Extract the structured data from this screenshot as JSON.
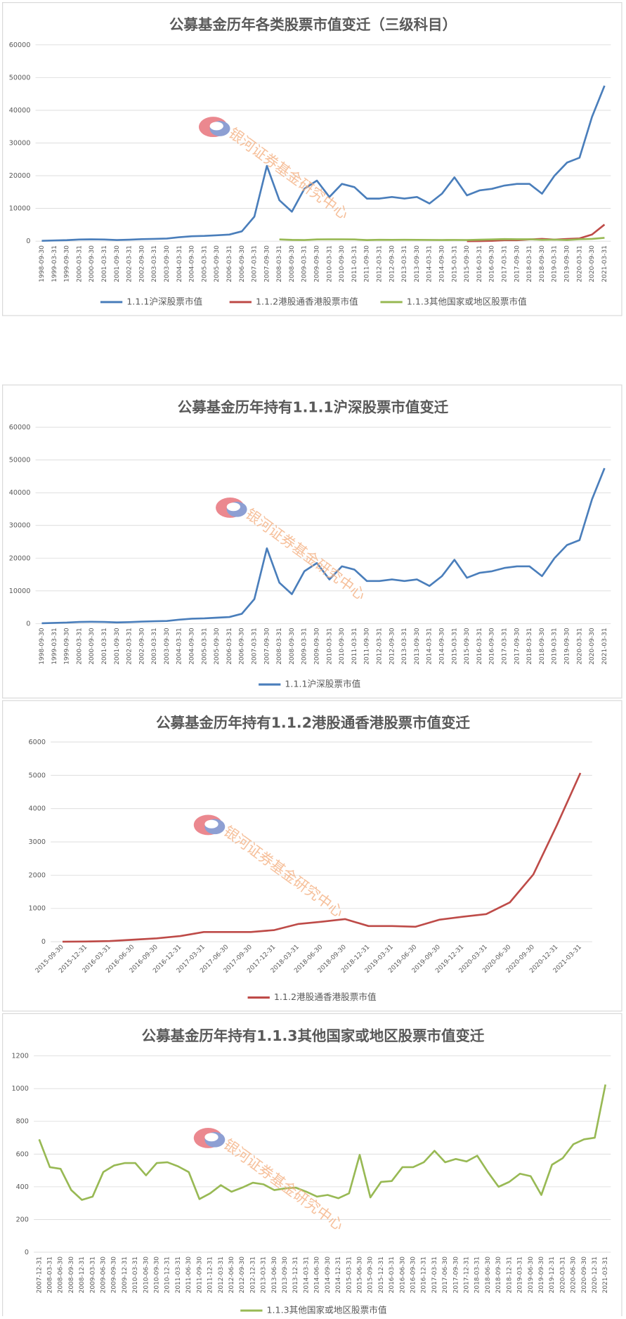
{
  "chart_data": [
    {
      "type": "line",
      "title": "公募基金历年各类股票市值变迁（三级科目）",
      "watermark": "银河证券基金研究中心",
      "categories": [
        "1998-09-30",
        "1999-03-31",
        "1999-09-30",
        "2000-03-31",
        "2000-09-30",
        "2001-03-31",
        "2001-09-30",
        "2002-03-31",
        "2002-09-30",
        "2003-03-31",
        "2003-09-30",
        "2004-03-31",
        "2004-09-30",
        "2005-03-31",
        "2005-09-30",
        "2006-03-31",
        "2006-09-30",
        "2007-03-31",
        "2007-09-30",
        "2008-03-31",
        "2008-09-30",
        "2009-03-31",
        "2009-09-30",
        "2010-03-31",
        "2010-09-30",
        "2011-03-31",
        "2011-09-30",
        "2012-03-31",
        "2012-09-30",
        "2013-03-31",
        "2013-09-30",
        "2014-03-31",
        "2014-09-30",
        "2015-03-31",
        "2015-09-30",
        "2016-03-31",
        "2016-09-30",
        "2017-03-31",
        "2017-09-30",
        "2018-03-31",
        "2018-09-30",
        "2019-03-31",
        "2019-09-30",
        "2020-03-31",
        "2020-09-30",
        "2021-03-31"
      ],
      "series": [
        {
          "name": "1.1.1沪深股票市值",
          "color": "#4a7ebb",
          "values": [
            100,
            200,
            300,
            500,
            550,
            500,
            350,
            450,
            600,
            700,
            800,
            1200,
            1500,
            1600,
            1800,
            2000,
            3000,
            7500,
            23000,
            12500,
            9000,
            16000,
            18500,
            13500,
            17500,
            16500,
            13000,
            13000,
            13500,
            13000,
            13500,
            11500,
            14500,
            19500,
            14000,
            15500,
            16000,
            17000,
            17500,
            17500,
            14500,
            20000,
            24000,
            25500,
            38000,
            47500
          ]
        },
        {
          "name": "1.1.2港股通香港股票市值",
          "color": "#be4b48",
          "values": [
            null,
            null,
            null,
            null,
            null,
            null,
            null,
            null,
            null,
            null,
            null,
            null,
            null,
            null,
            null,
            null,
            null,
            null,
            null,
            null,
            null,
            null,
            null,
            null,
            null,
            null,
            null,
            null,
            null,
            null,
            null,
            null,
            null,
            null,
            0,
            20,
            100,
            290,
            290,
            530,
            680,
            470,
            660,
            830,
            2020,
            5070
          ]
        },
        {
          "name": "1.1.3其他国家或地区股票市值",
          "color": "#98b954",
          "values": [
            null,
            null,
            null,
            null,
            null,
            null,
            null,
            null,
            null,
            null,
            null,
            null,
            null,
            null,
            null,
            null,
            null,
            null,
            null,
            520,
            380,
            340,
            530,
            545,
            545,
            525,
            325,
            410,
            395,
            415,
            390,
            370,
            350,
            360,
            335,
            435,
            520,
            620,
            570,
            590,
            400,
            480,
            350,
            575,
            690,
            1025
          ]
        }
      ],
      "ylim": [
        0,
        60000
      ],
      "yticks": [
        0,
        10000,
        20000,
        30000,
        40000,
        50000,
        60000
      ],
      "grid": true
    },
    {
      "type": "line",
      "title": "公募基金历年持有1.1.1沪深股票市值变迁",
      "watermark": "银河证券基金研究中心",
      "categories": [
        "1998-09-30",
        "1999-03-31",
        "1999-09-30",
        "2000-03-31",
        "2000-09-30",
        "2001-03-31",
        "2001-09-30",
        "2002-03-31",
        "2002-09-30",
        "2003-03-31",
        "2003-09-30",
        "2004-03-31",
        "2004-09-30",
        "2005-03-31",
        "2005-09-30",
        "2006-03-31",
        "2006-09-30",
        "2007-03-31",
        "2007-09-30",
        "2008-03-31",
        "2008-09-30",
        "2009-03-31",
        "2009-09-30",
        "2010-03-31",
        "2010-09-30",
        "2011-03-31",
        "2011-09-30",
        "2012-03-31",
        "2012-09-30",
        "2013-03-31",
        "2013-09-30",
        "2014-03-31",
        "2014-09-30",
        "2015-03-31",
        "2015-09-30",
        "2016-03-31",
        "2016-09-30",
        "2017-03-31",
        "2017-09-30",
        "2018-03-31",
        "2018-09-30",
        "2019-03-31",
        "2019-09-30",
        "2020-03-31",
        "2020-09-30",
        "2021-03-31"
      ],
      "series": [
        {
          "name": "1.1.1沪深股票市值",
          "color": "#4a7ebb",
          "values": [
            100,
            200,
            300,
            500,
            550,
            500,
            350,
            450,
            600,
            700,
            800,
            1200,
            1500,
            1600,
            1800,
            2000,
            3000,
            7500,
            23000,
            12500,
            9000,
            16000,
            18500,
            13500,
            17500,
            16500,
            13000,
            13000,
            13500,
            13000,
            13500,
            11500,
            14500,
            19500,
            14000,
            15500,
            16000,
            17000,
            17500,
            17500,
            14500,
            20000,
            24000,
            25500,
            38000,
            47500
          ]
        }
      ],
      "ylim": [
        0,
        60000
      ],
      "yticks": [
        0,
        10000,
        20000,
        30000,
        40000,
        50000,
        60000
      ],
      "grid": true
    },
    {
      "type": "line",
      "title": "公募基金历年持有1.1.2港股通香港股票市值变迁",
      "watermark": "银河证券基金研究中心",
      "categories": [
        "2015-09-30",
        "2015-12-31",
        "2016-03-31",
        "2016-06-30",
        "2016-09-30",
        "2016-12-31",
        "2017-03-31",
        "2017-06-30",
        "2017-09-30",
        "2017-12-31",
        "2018-03-31",
        "2018-06-30",
        "2018-09-30",
        "2018-12-31",
        "2019-03-31",
        "2019-06-30",
        "2019-09-30",
        "2019-12-31",
        "2020-03-31",
        "2020-06-30",
        "2020-09-30",
        "2020-12-31",
        "2021-03-31"
      ],
      "series": [
        {
          "name": "1.1.2港股通香港股票市值",
          "color": "#be4b48",
          "values": [
            0,
            5,
            20,
            60,
            100,
            170,
            290,
            290,
            290,
            350,
            530,
            600,
            680,
            470,
            470,
            450,
            660,
            750,
            830,
            1180,
            2020,
            3500,
            5070
          ]
        }
      ],
      "ylim": [
        0,
        6000
      ],
      "yticks": [
        0,
        1000,
        2000,
        3000,
        4000,
        5000,
        6000
      ],
      "grid": true
    },
    {
      "type": "line",
      "title": "公募基金历年持有1.1.3其他国家或地区股票市值变迁",
      "watermark": "银河证券基金研究中心",
      "categories": [
        "2007-12-31",
        "2008-03-31",
        "2008-06-30",
        "2008-09-30",
        "2008-12-31",
        "2009-03-31",
        "2009-06-30",
        "2009-09-30",
        "2009-12-31",
        "2010-03-31",
        "2010-06-30",
        "2010-09-30",
        "2010-12-31",
        "2011-03-31",
        "2011-06-30",
        "2011-09-30",
        "2011-12-31",
        "2012-03-31",
        "2012-06-30",
        "2012-09-30",
        "2012-12-31",
        "2013-03-31",
        "2013-06-30",
        "2013-09-30",
        "2013-12-31",
        "2014-03-31",
        "2014-06-30",
        "2014-09-30",
        "2014-12-31",
        "2015-03-31",
        "2015-06-30",
        "2015-09-30",
        "2015-12-31",
        "2016-03-31",
        "2016-06-30",
        "2016-09-30",
        "2016-12-31",
        "2017-03-31",
        "2017-06-30",
        "2017-09-30",
        "2017-12-31",
        "2018-03-31",
        "2018-06-30",
        "2018-09-30",
        "2018-12-31",
        "2019-03-31",
        "2019-06-30",
        "2019-09-30",
        "2019-12-31",
        "2020-03-31",
        "2020-06-30",
        "2020-09-30",
        "2020-12-31",
        "2021-03-31"
      ],
      "series": [
        {
          "name": "1.1.3其他国家或地区股票市值",
          "color": "#98b954",
          "values": [
            690,
            520,
            510,
            380,
            320,
            340,
            490,
            530,
            545,
            545,
            470,
            545,
            550,
            525,
            490,
            325,
            360,
            410,
            370,
            395,
            425,
            415,
            380,
            390,
            395,
            370,
            340,
            350,
            330,
            360,
            595,
            335,
            430,
            435,
            520,
            520,
            550,
            620,
            550,
            570,
            555,
            590,
            490,
            400,
            430,
            480,
            465,
            350,
            535,
            575,
            660,
            690,
            700,
            1025
          ]
        }
      ],
      "ylim": [
        0,
        1200
      ],
      "yticks": [
        0,
        200,
        400,
        600,
        800,
        1000,
        1200
      ],
      "grid": true
    }
  ]
}
